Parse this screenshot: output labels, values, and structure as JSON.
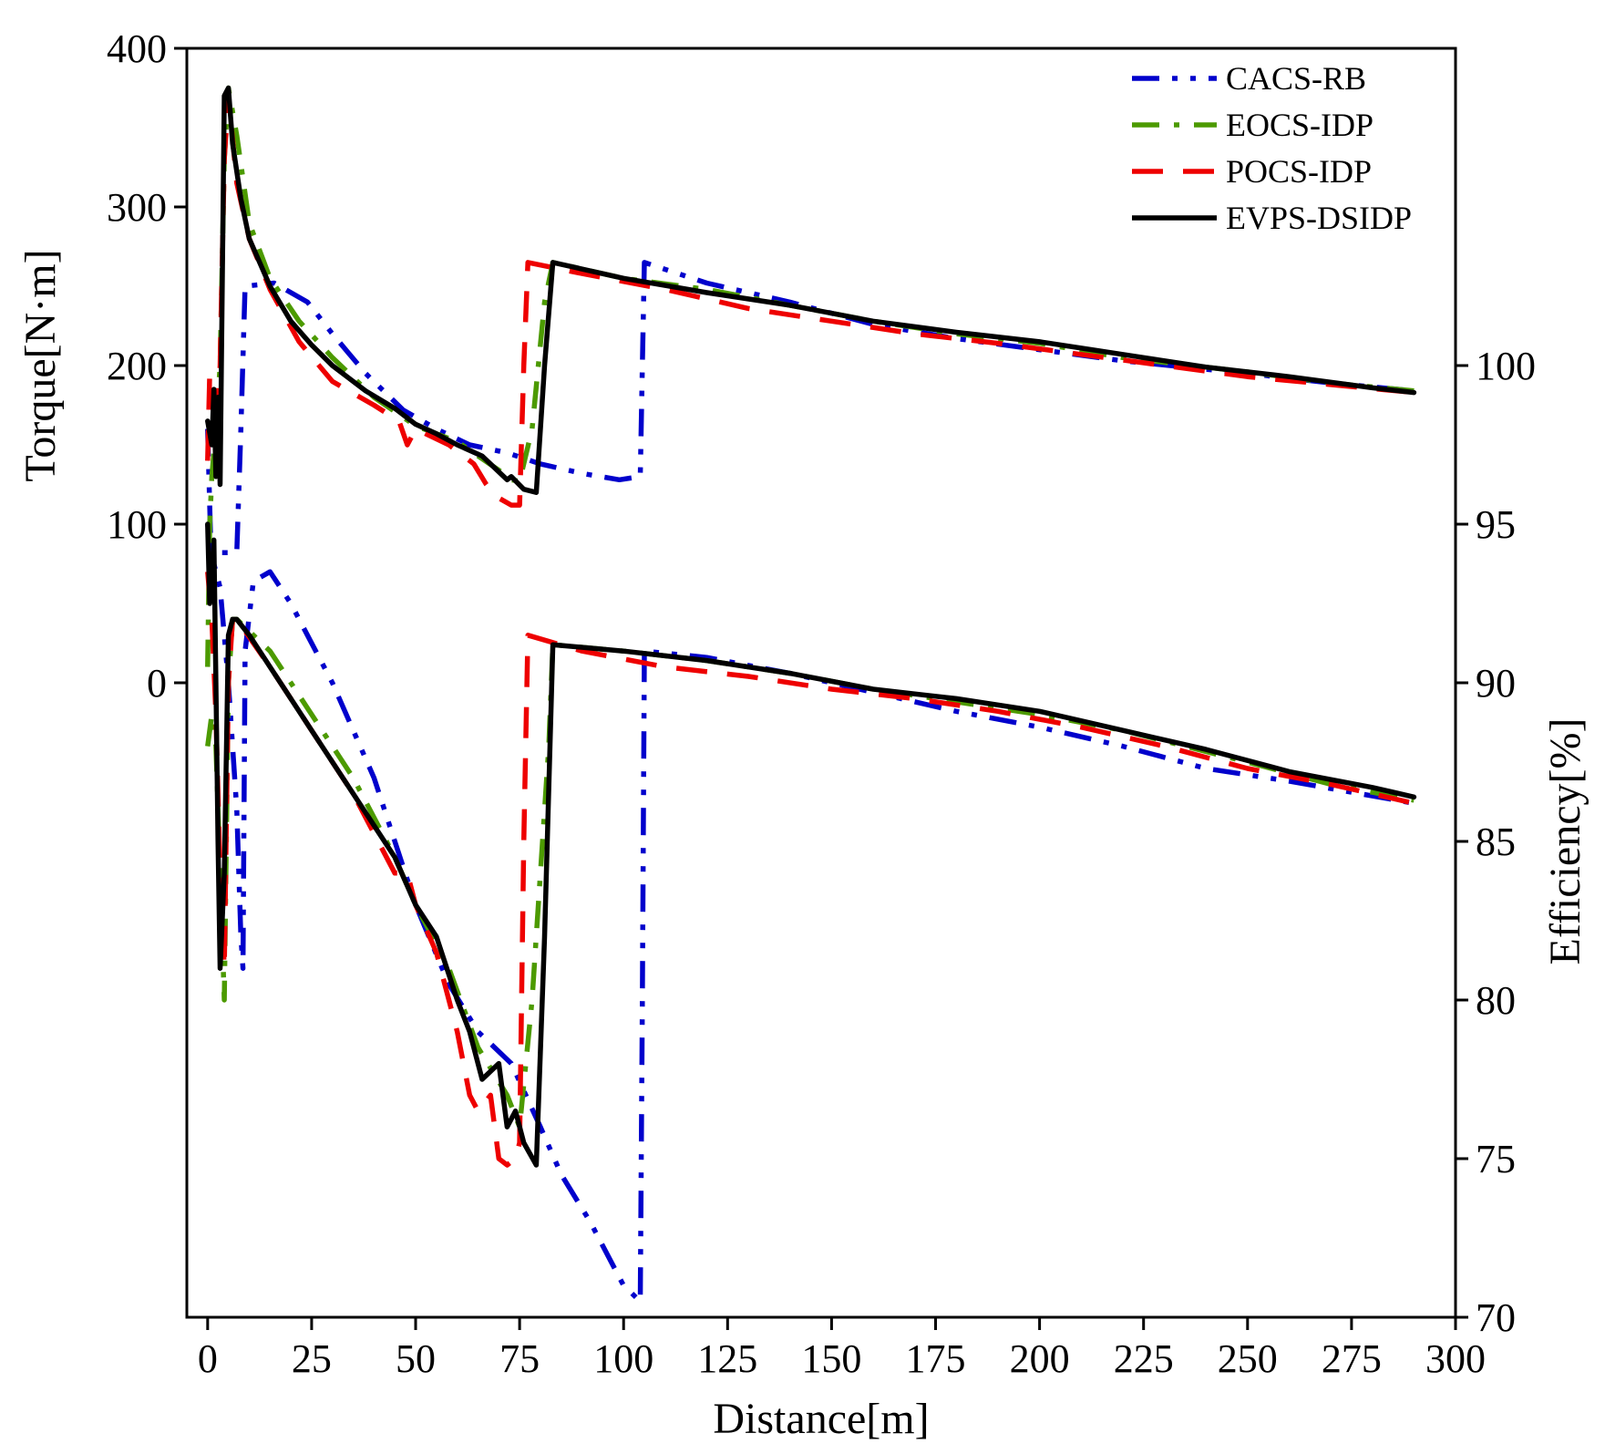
{
  "chart_data": {
    "type": "line",
    "xlabel": "Distance[m]",
    "ylabel_left": "Torque[N·m]",
    "ylabel_right": "Efficiency[%]",
    "xlim": [
      -5,
      300
    ],
    "xticks": [
      0,
      25,
      50,
      75,
      100,
      125,
      150,
      175,
      200,
      225,
      250,
      275,
      300
    ],
    "ylim_left": [
      -400,
      400
    ],
    "yticks_left": [
      0,
      100,
      200,
      300,
      400
    ],
    "ylim_right": [
      70,
      110
    ],
    "yticks_right": [
      70,
      75,
      80,
      85,
      90,
      95,
      100
    ],
    "legend_position": "top-right",
    "series": [
      {
        "name": "CACS-RB",
        "color": "#0000cc",
        "style": "dash-dot-dot",
        "torque": [
          [
            0,
            160
          ],
          [
            0.8,
            82
          ],
          [
            2,
            82
          ],
          [
            7,
            82
          ],
          [
            8,
            160
          ],
          [
            9,
            250
          ],
          [
            16,
            252
          ],
          [
            24,
            240
          ],
          [
            30,
            220
          ],
          [
            38,
            195
          ],
          [
            47,
            172
          ],
          [
            55,
            160
          ],
          [
            63,
            150
          ],
          [
            72,
            145
          ],
          [
            80,
            138
          ],
          [
            90,
            132
          ],
          [
            99,
            128
          ],
          [
            104,
            130
          ],
          [
            104.5,
            200
          ],
          [
            105,
            265
          ],
          [
            120,
            252
          ],
          [
            140,
            240
          ],
          [
            160,
            226
          ],
          [
            180,
            217
          ],
          [
            200,
            210
          ],
          [
            220,
            203
          ],
          [
            250,
            195
          ],
          [
            270,
            189
          ],
          [
            290,
            184
          ]
        ],
        "efficiency": [
          [
            0,
            95
          ],
          [
            1,
            94
          ],
          [
            3,
            93
          ],
          [
            5,
            90
          ],
          [
            7,
            86
          ],
          [
            8,
            82
          ],
          [
            8.5,
            81
          ],
          [
            9,
            91
          ],
          [
            11,
            93.2
          ],
          [
            15,
            93.5
          ],
          [
            20,
            92.5
          ],
          [
            30,
            90
          ],
          [
            40,
            87
          ],
          [
            50,
            83
          ],
          [
            58,
            80.5
          ],
          [
            65,
            79
          ],
          [
            73,
            78
          ],
          [
            80,
            76
          ],
          [
            85,
            74.5
          ],
          [
            92,
            73
          ],
          [
            100,
            71
          ],
          [
            104,
            70.5
          ],
          [
            104.5,
            80
          ],
          [
            105,
            91
          ],
          [
            120,
            90.8
          ],
          [
            140,
            90.3
          ],
          [
            160,
            89.7
          ],
          [
            180,
            89.1
          ],
          [
            200,
            88.6
          ],
          [
            220,
            88
          ],
          [
            240,
            87.3
          ],
          [
            260,
            86.9
          ],
          [
            290,
            86.2
          ]
        ]
      },
      {
        "name": "EOCS-IDP",
        "color": "#4c9a00",
        "style": "dash-dot",
        "torque": [
          [
            0,
            10
          ],
          [
            0.5,
            100
          ],
          [
            1,
            130
          ],
          [
            2,
            160
          ],
          [
            3,
            200
          ],
          [
            4,
            330
          ],
          [
            5,
            375
          ],
          [
            7,
            345
          ],
          [
            10,
            290
          ],
          [
            15,
            255
          ],
          [
            22,
            228
          ],
          [
            30,
            205
          ],
          [
            40,
            180
          ],
          [
            50,
            162
          ],
          [
            60,
            152
          ],
          [
            70,
            134
          ],
          [
            73,
            128
          ],
          [
            75,
            127
          ],
          [
            78,
            160
          ],
          [
            81,
            240
          ],
          [
            83,
            265
          ],
          [
            100,
            255
          ],
          [
            120,
            248
          ],
          [
            140,
            238
          ],
          [
            160,
            228
          ],
          [
            180,
            220
          ],
          [
            200,
            214
          ],
          [
            220,
            205
          ],
          [
            250,
            196
          ],
          [
            270,
            189
          ],
          [
            290,
            184
          ]
        ],
        "efficiency": [
          [
            0,
            88
          ],
          [
            1,
            89
          ],
          [
            2,
            88
          ],
          [
            3,
            84
          ],
          [
            4,
            80
          ],
          [
            5,
            90
          ],
          [
            6,
            92
          ],
          [
            7,
            92
          ],
          [
            15,
            91
          ],
          [
            25,
            89
          ],
          [
            35,
            87
          ],
          [
            45,
            84.5
          ],
          [
            50,
            83
          ],
          [
            58,
            81
          ],
          [
            65,
            78.5
          ],
          [
            72,
            77
          ],
          [
            75,
            76
          ],
          [
            78,
            80
          ],
          [
            82,
            88
          ],
          [
            83,
            91.2
          ],
          [
            100,
            91
          ],
          [
            120,
            90.7
          ],
          [
            140,
            90.3
          ],
          [
            160,
            89.8
          ],
          [
            180,
            89.4
          ],
          [
            200,
            89
          ],
          [
            220,
            88.5
          ],
          [
            250,
            87.5
          ],
          [
            270,
            86.8
          ],
          [
            290,
            86.3
          ]
        ]
      },
      {
        "name": "POCS-IDP",
        "color": "#ee0000",
        "style": "dash",
        "torque": [
          [
            0,
            140
          ],
          [
            0.5,
            195
          ],
          [
            1,
            190
          ],
          [
            2,
            160
          ],
          [
            3,
            200
          ],
          [
            4,
            330
          ],
          [
            5,
            370
          ],
          [
            7,
            315
          ],
          [
            10,
            280
          ],
          [
            15,
            248
          ],
          [
            22,
            215
          ],
          [
            30,
            190
          ],
          [
            40,
            175
          ],
          [
            46,
            165
          ],
          [
            48,
            150
          ],
          [
            50,
            160
          ],
          [
            58,
            150
          ],
          [
            64,
            138
          ],
          [
            67,
            125
          ],
          [
            69,
            118
          ],
          [
            73,
            112
          ],
          [
            75,
            112
          ],
          [
            76,
            200
          ],
          [
            77,
            265
          ],
          [
            90,
            258
          ],
          [
            110,
            248
          ],
          [
            130,
            236
          ],
          [
            150,
            228
          ],
          [
            170,
            220
          ],
          [
            190,
            214
          ],
          [
            210,
            207
          ],
          [
            230,
            200
          ],
          [
            250,
            193
          ],
          [
            270,
            188
          ],
          [
            290,
            183
          ]
        ],
        "efficiency": [
          [
            0,
            93.5
          ],
          [
            1,
            92
          ],
          [
            2,
            89
          ],
          [
            3,
            84
          ],
          [
            4,
            81
          ],
          [
            5,
            90
          ],
          [
            6,
            92
          ],
          [
            7,
            92
          ],
          [
            15,
            90.5
          ],
          [
            25,
            88.5
          ],
          [
            35,
            86.5
          ],
          [
            45,
            84
          ],
          [
            48,
            84
          ],
          [
            50,
            83
          ],
          [
            55,
            81.5
          ],
          [
            60,
            79
          ],
          [
            63,
            77
          ],
          [
            65,
            76.5
          ],
          [
            68,
            77
          ],
          [
            70,
            75
          ],
          [
            72,
            74.8
          ],
          [
            74,
            75
          ],
          [
            75,
            75.5
          ],
          [
            76,
            85
          ],
          [
            77,
            91.5
          ],
          [
            90,
            91
          ],
          [
            110,
            90.5
          ],
          [
            130,
            90.2
          ],
          [
            150,
            89.8
          ],
          [
            170,
            89.5
          ],
          [
            190,
            89.1
          ],
          [
            210,
            88.6
          ],
          [
            230,
            88
          ],
          [
            250,
            87.3
          ],
          [
            270,
            86.8
          ],
          [
            290,
            86.2
          ]
        ]
      },
      {
        "name": "EVPS-DSIDP",
        "color": "#000000",
        "style": "solid",
        "torque": [
          [
            0,
            165
          ],
          [
            1,
            150
          ],
          [
            1.5,
            185
          ],
          [
            2,
            130
          ],
          [
            2.5,
            180
          ],
          [
            3,
            125
          ],
          [
            4,
            370
          ],
          [
            5,
            375
          ],
          [
            6,
            340
          ],
          [
            8,
            305
          ],
          [
            10,
            280
          ],
          [
            12,
            268
          ],
          [
            15,
            250
          ],
          [
            20,
            228
          ],
          [
            25,
            213
          ],
          [
            30,
            200
          ],
          [
            38,
            184
          ],
          [
            45,
            173
          ],
          [
            50,
            163
          ],
          [
            55,
            157
          ],
          [
            60,
            150
          ],
          [
            66,
            143
          ],
          [
            70,
            133
          ],
          [
            72,
            128
          ],
          [
            73,
            130
          ],
          [
            76,
            122
          ],
          [
            79,
            120
          ],
          [
            81,
            200
          ],
          [
            83,
            265
          ],
          [
            100,
            255
          ],
          [
            120,
            246
          ],
          [
            140,
            238
          ],
          [
            160,
            228
          ],
          [
            180,
            221
          ],
          [
            200,
            215
          ],
          [
            220,
            207
          ],
          [
            240,
            199
          ],
          [
            260,
            193
          ],
          [
            280,
            186
          ],
          [
            290,
            183
          ]
        ],
        "efficiency": [
          [
            0,
            95
          ],
          [
            0.5,
            92.5
          ],
          [
            1,
            93
          ],
          [
            1.5,
            94.5
          ],
          [
            2,
            90
          ],
          [
            2.5,
            85
          ],
          [
            3,
            81
          ],
          [
            4,
            84
          ],
          [
            5,
            91.5
          ],
          [
            6,
            92
          ],
          [
            7,
            92
          ],
          [
            10,
            91.5
          ],
          [
            15,
            90.5
          ],
          [
            25,
            88.5
          ],
          [
            35,
            86.5
          ],
          [
            45,
            84.5
          ],
          [
            50,
            83
          ],
          [
            55,
            82
          ],
          [
            60,
            80
          ],
          [
            63,
            79
          ],
          [
            66,
            77.5
          ],
          [
            70,
            78
          ],
          [
            72,
            76
          ],
          [
            74,
            76.5
          ],
          [
            76,
            75.5
          ],
          [
            79,
            74.8
          ],
          [
            81,
            82
          ],
          [
            83,
            91.2
          ],
          [
            100,
            91
          ],
          [
            120,
            90.7
          ],
          [
            140,
            90.3
          ],
          [
            160,
            89.8
          ],
          [
            180,
            89.5
          ],
          [
            200,
            89.1
          ],
          [
            220,
            88.5
          ],
          [
            240,
            87.9
          ],
          [
            260,
            87.2
          ],
          [
            280,
            86.7
          ],
          [
            290,
            86.4
          ]
        ]
      }
    ]
  }
}
